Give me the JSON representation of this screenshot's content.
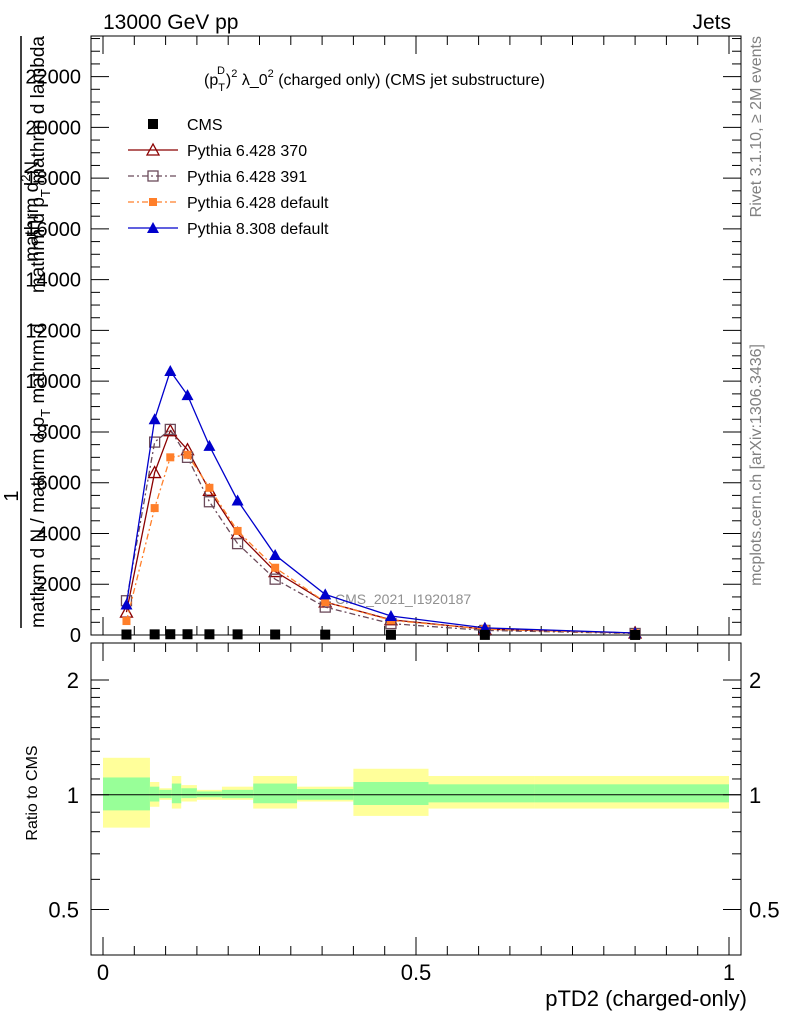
{
  "header": {
    "left": "13000 GeV pp",
    "right": "Jets"
  },
  "side": {
    "top": "Rivet 3.1.10, ≥ 2M events",
    "bottom": "mcplots.cern.ch [arXiv:1306.3436]"
  },
  "chart_data": [
    {
      "type": "line",
      "title": "(p_T^D)^2 λ_0^2 (charged only) (CMS jet substructure)",
      "title_parts": {
        "lead": "(p",
        "sub": "T",
        "sup1": "D",
        "close": ")",
        "sup2": "2",
        "mid": " λ_0",
        "sup3": "2",
        "tail": " (charged only) (CMS jet substructure)"
      },
      "ylabel_lines": [
        "1",
        "mathrm d N / mathrm d p_T mathrm d lambda",
        "mathrm d²N / mathrm d p_T mathrm d lambda"
      ],
      "ylabel": {
        "num": "1",
        "den": "mathrm d N / mathrm d p",
        "sub": "T",
        "mid": " mathrm d",
        "frac_num": "mathrm d",
        "frac_num_sup": "2",
        "frac_num_tail": "N",
        "frac_den": "mathrm d p",
        "frac_den_sub": "T",
        "frac_den_tail": " mathrm d lambda"
      },
      "watermark": "CMS_2021_I1920187",
      "xlim": [
        0,
        1
      ],
      "ylim": [
        0,
        23600
      ],
      "yticks": [
        0,
        2000,
        4000,
        6000,
        8000,
        10000,
        12000,
        14000,
        16000,
        18000,
        20000,
        22000
      ],
      "ytick_labels": [
        "0",
        "2000",
        "4000",
        "6000",
        "8000",
        "10000",
        "12000",
        "14000",
        "16000",
        "18000",
        "20000",
        "22000"
      ],
      "legend_position": "top-left",
      "x": [
        0.0375,
        0.0825,
        0.1075,
        0.135,
        0.17,
        0.215,
        0.275,
        0.355,
        0.46,
        0.61,
        0.85
      ],
      "series": [
        {
          "name": "CMS",
          "color": "#000000",
          "marker": "square-filled",
          "values": [
            20,
            25,
            30,
            30,
            28,
            25,
            20,
            15,
            10,
            5,
            2
          ]
        },
        {
          "name": "Pythia 6.428 370",
          "color": "#8b0000",
          "marker": "triangle-open",
          "dash": "",
          "values": [
            900,
            6400,
            8050,
            7300,
            5700,
            4000,
            2500,
            1300,
            600,
            230,
            80
          ]
        },
        {
          "name": "Pythia 6.428 391",
          "color": "#6b4a5a",
          "marker": "square-open",
          "dash": "6,3,2,3",
          "values": [
            1350,
            7600,
            8100,
            7000,
            5250,
            3600,
            2200,
            1100,
            450,
            180,
            60
          ]
        },
        {
          "name": "Pythia 6.428 default",
          "color": "#ff7f2a",
          "marker": "square-filled-small",
          "dash": "6,3,2,3",
          "values": [
            550,
            5000,
            7000,
            7100,
            5800,
            4100,
            2650,
            1300,
            580,
            230,
            70
          ]
        },
        {
          "name": "Pythia 8.308 default",
          "color": "#0000cc",
          "marker": "triangle-filled",
          "dash": "",
          "values": [
            1200,
            8500,
            10400,
            9450,
            7450,
            5300,
            3150,
            1600,
            750,
            280,
            80
          ]
        }
      ]
    },
    {
      "type": "area",
      "ylabel": "Ratio to CMS",
      "xlabel": "pTD2 (charged-only)",
      "xlim": [
        0,
        1
      ],
      "ylim": [
        0.38,
        2.5
      ],
      "yscale": "log",
      "yticks": [
        0.5,
        1,
        2
      ],
      "ytick_labels": [
        "0.5",
        "1",
        "2"
      ],
      "xticks": [
        0,
        0.5,
        1
      ],
      "xtick_labels": [
        "0",
        "0.5",
        "1"
      ],
      "reference_line": 1,
      "bands": {
        "bin_edges": [
          0,
          0.075,
          0.09,
          0.11,
          0.125,
          0.15,
          0.19,
          0.24,
          0.31,
          0.4,
          0.52,
          0.69,
          1.0
        ],
        "inner_color": "#98ff98",
        "outer_color": "#ffff9a",
        "inner_low": [
          0.91,
          0.96,
          0.98,
          0.95,
          0.98,
          0.985,
          0.98,
          0.95,
          0.97,
          0.94,
          0.955,
          0.955
        ],
        "inner_high": [
          1.11,
          1.05,
          1.03,
          1.07,
          1.04,
          1.02,
          1.03,
          1.07,
          1.035,
          1.08,
          1.065,
          1.065
        ],
        "outer_low": [
          0.82,
          0.93,
          0.97,
          0.92,
          0.96,
          0.97,
          0.97,
          0.92,
          0.96,
          0.88,
          0.92,
          0.92
        ],
        "outer_high": [
          1.25,
          1.08,
          1.04,
          1.12,
          1.06,
          1.03,
          1.05,
          1.12,
          1.05,
          1.17,
          1.12,
          1.12
        ]
      }
    }
  ]
}
